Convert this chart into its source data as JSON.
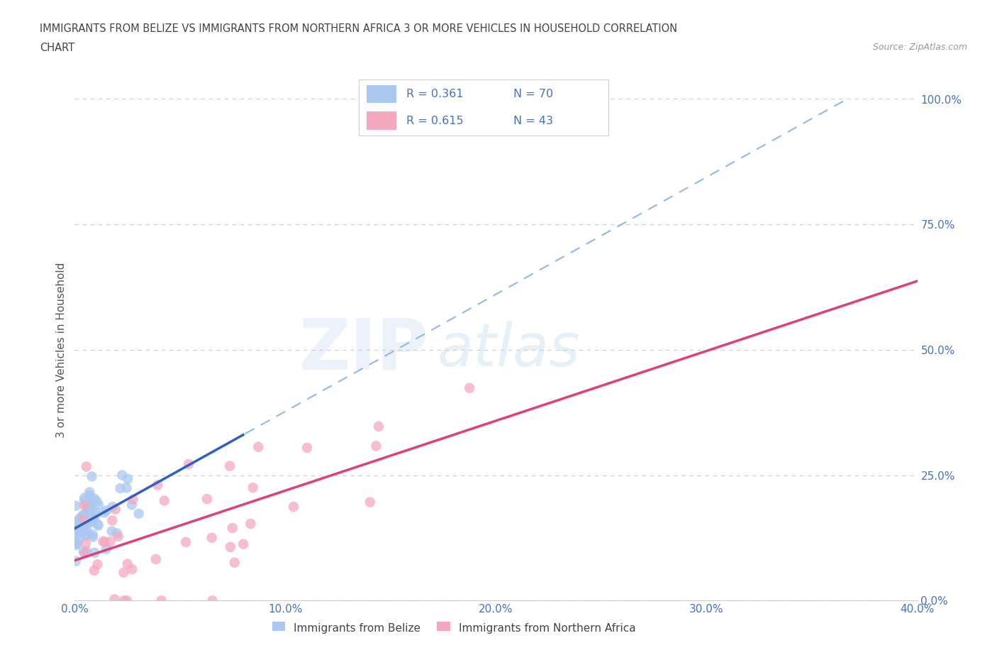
{
  "title_line1": "IMMIGRANTS FROM BELIZE VS IMMIGRANTS FROM NORTHERN AFRICA 3 OR MORE VEHICLES IN HOUSEHOLD CORRELATION",
  "title_line2": "CHART",
  "source_text": "Source: ZipAtlas.com",
  "watermark_zip": "ZIP",
  "watermark_atlas": "atlas",
  "ylabel": "3 or more Vehicles in Household",
  "xlim": [
    0.0,
    0.4
  ],
  "ylim": [
    0.0,
    1.0
  ],
  "xticks": [
    0.0,
    0.1,
    0.2,
    0.3,
    0.4
  ],
  "yticks": [
    0.0,
    0.25,
    0.5,
    0.75,
    1.0
  ],
  "xtick_labels": [
    "0.0%",
    "10.0%",
    "20.0%",
    "30.0%",
    "40.0%"
  ],
  "ytick_labels": [
    "0.0%",
    "25.0%",
    "50.0%",
    "75.0%",
    "100.0%"
  ],
  "belize_R": 0.361,
  "belize_N": 70,
  "northern_africa_R": 0.615,
  "northern_africa_N": 43,
  "belize_color": "#aac8f0",
  "northern_africa_color": "#f4a8c0",
  "belize_trend_color": "#3060c0",
  "northern_africa_trend_color": "#e0407a",
  "dashed_color": "#90b8e8",
  "legend_text_color": "#4472c4",
  "background_color": "#ffffff",
  "grid_color": "#cccccc",
  "title_color": "#444444",
  "source_color": "#999999",
  "ylabel_color": "#555555",
  "tick_color": "#4472c4"
}
